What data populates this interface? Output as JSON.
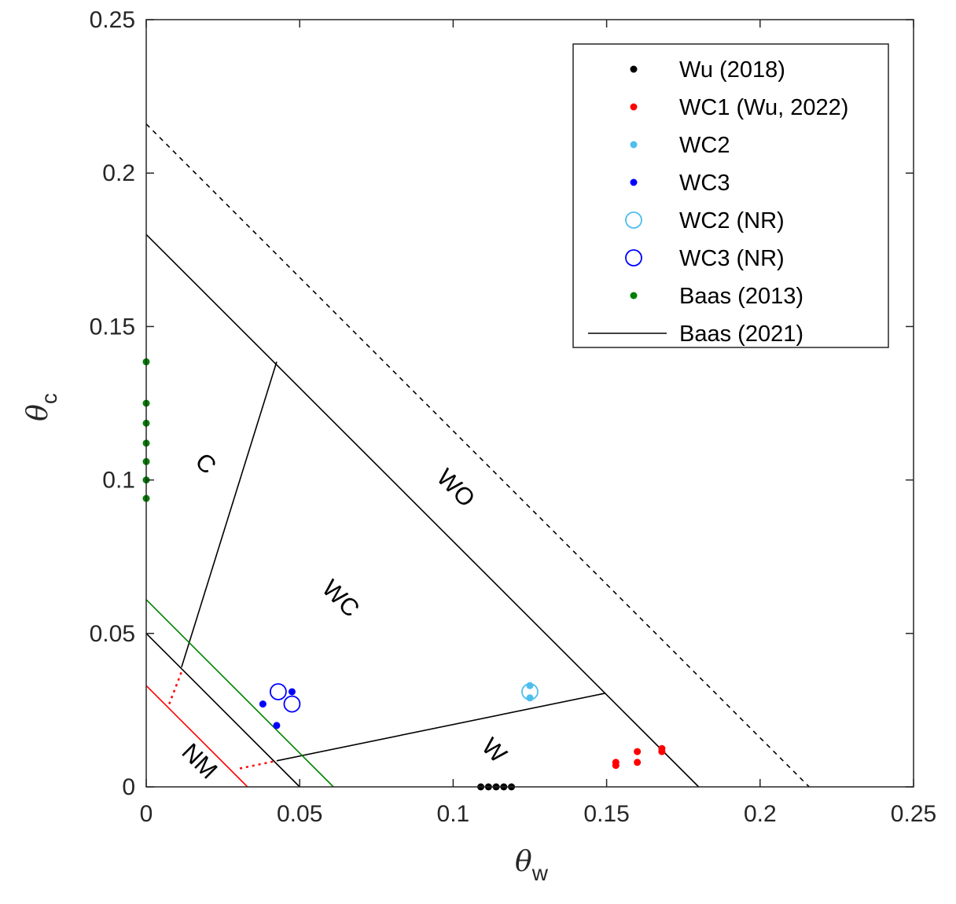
{
  "chart_data": {
    "type": "scatter",
    "xlabel": {
      "symbol": "θ",
      "subscript": "w"
    },
    "ylabel": {
      "symbol": "θ",
      "subscript": "c"
    },
    "xlim": [
      0,
      0.25
    ],
    "ylim": [
      0,
      0.25
    ],
    "xticks": [
      0,
      0.05,
      0.1,
      0.15,
      0.2,
      0.25
    ],
    "xtick_labels": [
      "0",
      "0.05",
      "0.1",
      "0.15",
      "0.2",
      "0.25"
    ],
    "yticks": [
      0,
      0.05,
      0.1,
      0.15,
      0.2,
      0.25
    ],
    "ytick_labels": [
      "0",
      "0.05",
      "0.1",
      "0.15",
      "0.2",
      "0.25"
    ],
    "grid": false,
    "legend_position": "top-right",
    "series": [
      {
        "name": "Wu (2018)",
        "marker": "dot",
        "color": "#000000",
        "points": [
          [
            0.109,
            0.0
          ],
          [
            0.1115,
            0.0
          ],
          [
            0.114,
            0.0
          ],
          [
            0.1165,
            0.0
          ],
          [
            0.119,
            0.0
          ]
        ]
      },
      {
        "name": "WC1 (Wu, 2022)",
        "marker": "dot",
        "color": "#ff0000",
        "points": [
          [
            0.153,
            0.008
          ],
          [
            0.153,
            0.007
          ],
          [
            0.16,
            0.0115
          ],
          [
            0.16,
            0.008
          ],
          [
            0.168,
            0.0125
          ],
          [
            0.168,
            0.0115
          ]
        ]
      },
      {
        "name": "WC2",
        "marker": "dot",
        "color": "#4dbeee",
        "points": [
          [
            0.125,
            0.033
          ],
          [
            0.125,
            0.029
          ]
        ]
      },
      {
        "name": "WC3",
        "marker": "dot",
        "color": "#0000ff",
        "points": [
          [
            0.038,
            0.027
          ],
          [
            0.0475,
            0.031
          ],
          [
            0.0425,
            0.02
          ]
        ]
      },
      {
        "name": "WC2 (NR)",
        "marker": "circle",
        "color": "#4dbeee",
        "points": [
          [
            0.125,
            0.031
          ]
        ]
      },
      {
        "name": "WC3 (NR)",
        "marker": "circle",
        "color": "#0000ff",
        "points": [
          [
            0.043,
            0.031
          ],
          [
            0.0475,
            0.027
          ]
        ]
      },
      {
        "name": "Baas (2013)",
        "marker": "dot",
        "color": "#008000",
        "points": [
          [
            0.0,
            0.1385
          ],
          [
            0.0,
            0.125
          ],
          [
            0.0,
            0.1185
          ],
          [
            0.0,
            0.112
          ],
          [
            0.0,
            0.106
          ],
          [
            0.0,
            0.1
          ],
          [
            0.0,
            0.094
          ]
        ]
      }
    ],
    "lines": [
      {
        "name": "Baas (2021)",
        "color": "#000000",
        "style": "solid",
        "in_legend": true,
        "segments": [
          [
            [
              0.0,
              0.18
            ],
            [
              0.18,
              0.0
            ]
          ],
          [
            [
              0.0,
              0.05
            ],
            [
              0.05,
              0.0
            ]
          ],
          [
            [
              0.0115,
              0.039
            ],
            [
              0.0425,
              0.1385
            ]
          ],
          [
            [
              0.0425,
              0.0085
            ],
            [
              0.1495,
              0.0305
            ]
          ]
        ]
      },
      {
        "color": "#000000",
        "style": "dashed",
        "in_legend": false,
        "segments": [
          [
            [
              0.0,
              0.216
            ],
            [
              0.216,
              0.0
            ]
          ]
        ]
      },
      {
        "color": "#008000",
        "style": "solid",
        "in_legend": false,
        "segments": [
          [
            [
              0.0,
              0.061
            ],
            [
              0.061,
              0.0
            ]
          ]
        ]
      },
      {
        "color": "#ff0000",
        "style": "solid",
        "in_legend": false,
        "segments": [
          [
            [
              0.0,
              0.033
            ],
            [
              0.033,
              0.0
            ]
          ]
        ]
      },
      {
        "color": "#ff0000",
        "style": "dotted",
        "in_legend": false,
        "segments": [
          [
            [
              0.0075,
              0.027
            ],
            [
              0.0115,
              0.0375
            ]
          ],
          [
            [
              0.0305,
              0.006
            ],
            [
              0.0425,
              0.0085
            ]
          ]
        ]
      }
    ],
    "annotations": [
      {
        "text": "NM",
        "x": 0.017,
        "y": 0.008,
        "rotation": 45
      },
      {
        "text": "C",
        "x": 0.019,
        "y": 0.105,
        "rotation": 45
      },
      {
        "text": "WC",
        "x": 0.063,
        "y": 0.061,
        "rotation": 45
      },
      {
        "text": "WO",
        "x": 0.1005,
        "y": 0.097,
        "rotation": 45
      },
      {
        "text": "W",
        "x": 0.113,
        "y": 0.0115,
        "rotation": 45
      }
    ]
  }
}
